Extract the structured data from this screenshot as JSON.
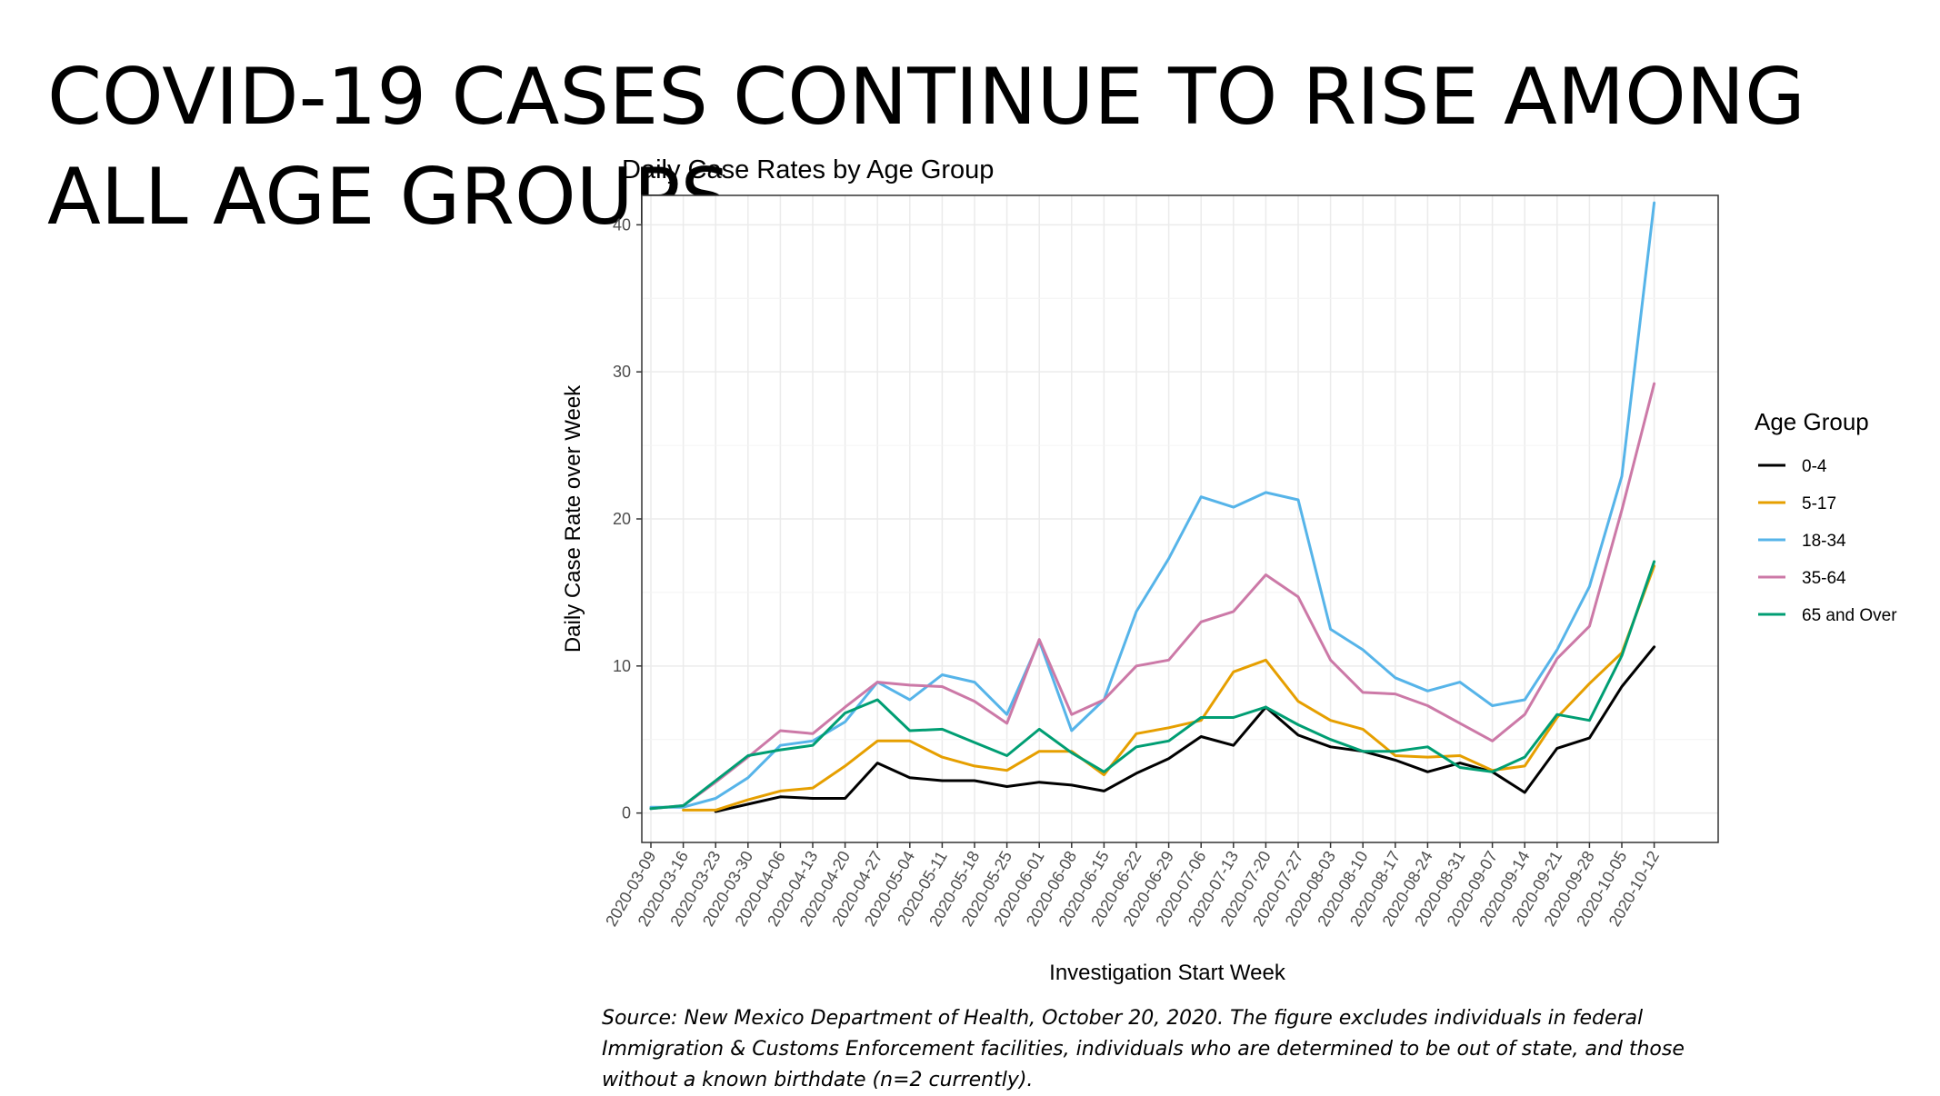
{
  "slide": {
    "title": "COVID-19 CASES CONTINUE TO RISE AMONG ALL AGE GROUPS",
    "source_note": "Source: New Mexico Department of Health, October 20, 2020. The figure excludes individuals in federal Immigration & Customs Enforcement facilities, individuals who are determined to be out of state, and those without a known birthdate (n=2 currently)."
  },
  "chart_data": {
    "type": "line",
    "title": "Daily Case Rates by Age Group",
    "xlabel": "Investigation Start Week",
    "ylabel": "Daily Case Rate over Week",
    "ylim": [
      -2,
      42
    ],
    "yticks": [
      0,
      10,
      20,
      30,
      40
    ],
    "grid": true,
    "legend_title": "Age Group",
    "legend_position": "right",
    "x": [
      "2020-03-09",
      "2020-03-16",
      "2020-03-23",
      "2020-03-30",
      "2020-04-06",
      "2020-04-13",
      "2020-04-20",
      "2020-04-27",
      "2020-05-04",
      "2020-05-11",
      "2020-05-18",
      "2020-05-25",
      "2020-06-01",
      "2020-06-08",
      "2020-06-15",
      "2020-06-22",
      "2020-06-29",
      "2020-07-06",
      "2020-07-13",
      "2020-07-20",
      "2020-07-27",
      "2020-08-03",
      "2020-08-10",
      "2020-08-17",
      "2020-08-24",
      "2020-08-31",
      "2020-09-07",
      "2020-09-14",
      "2020-09-21",
      "2020-09-28",
      "2020-10-05",
      "2020-10-12"
    ],
    "series": [
      {
        "name": "0-4",
        "color": "#000000",
        "values": [
          null,
          null,
          0.1,
          0.6,
          1.1,
          1.0,
          1.0,
          3.4,
          2.4,
          2.2,
          2.2,
          1.8,
          2.1,
          1.9,
          1.5,
          2.7,
          3.7,
          5.2,
          4.6,
          7.2,
          5.3,
          4.5,
          4.2,
          3.6,
          2.8,
          3.4,
          2.8,
          1.4,
          4.4,
          5.1,
          8.6,
          11.3
        ]
      },
      {
        "name": "5-17",
        "color": "#E69F00",
        "values": [
          null,
          0.2,
          0.2,
          0.9,
          1.5,
          1.7,
          3.2,
          4.9,
          4.9,
          3.8,
          3.2,
          2.9,
          4.2,
          4.2,
          2.6,
          5.4,
          5.8,
          6.3,
          9.6,
          10.4,
          7.6,
          6.3,
          5.7,
          3.9,
          3.8,
          3.9,
          2.9,
          3.2,
          6.5,
          8.8,
          10.9,
          16.8
        ]
      },
      {
        "name": "18-34",
        "color": "#56B4E9",
        "values": [
          0.4,
          0.4,
          1.0,
          2.4,
          4.6,
          4.9,
          6.2,
          8.9,
          7.7,
          9.4,
          8.9,
          6.7,
          11.7,
          5.6,
          7.7,
          13.7,
          17.3,
          21.5,
          20.8,
          21.8,
          21.3,
          12.5,
          11.1,
          9.2,
          8.3,
          8.9,
          7.3,
          7.7,
          11.1,
          15.4,
          22.9,
          41.5
        ]
      },
      {
        "name": "35-64",
        "color": "#CC79A7",
        "values": [
          0.3,
          0.5,
          2.1,
          3.8,
          5.6,
          5.4,
          7.2,
          8.9,
          8.7,
          8.6,
          7.6,
          6.1,
          11.8,
          6.7,
          7.7,
          10.0,
          10.4,
          13.0,
          13.7,
          16.2,
          14.7,
          10.4,
          8.2,
          8.1,
          7.3,
          6.1,
          4.9,
          6.7,
          10.5,
          12.7,
          20.6,
          29.2
        ]
      },
      {
        "name": "65 and Over",
        "color": "#009E73",
        "values": [
          0.3,
          0.5,
          2.2,
          3.9,
          4.3,
          4.6,
          6.8,
          7.7,
          5.6,
          5.7,
          4.8,
          3.9,
          5.7,
          4.1,
          2.8,
          4.5,
          4.9,
          6.5,
          6.5,
          7.2,
          6.0,
          5.0,
          4.2,
          4.2,
          4.5,
          3.1,
          2.8,
          3.8,
          6.7,
          6.3,
          10.7,
          17.1
        ]
      }
    ]
  }
}
